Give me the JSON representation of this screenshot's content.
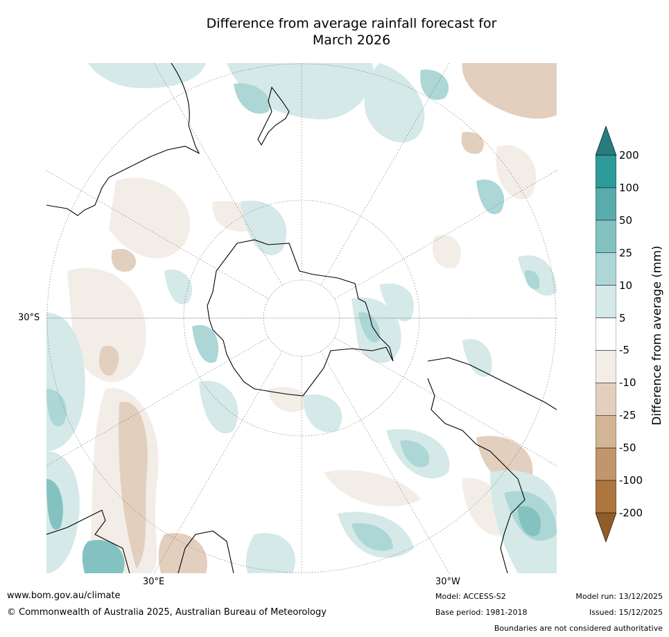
{
  "title": {
    "line1": "Difference from average rainfall forecast for",
    "line2": "March 2026"
  },
  "map": {
    "projection": "south-polar-stereographic",
    "labels": {
      "lat_left": "30°S",
      "lon_bottom_left": "30°E",
      "lon_bottom_right": "30°W"
    }
  },
  "colorbar": {
    "title": "Difference from average (mm)",
    "tick_labels": [
      "200",
      "100",
      "50",
      "25",
      "10",
      "5",
      "-5",
      "-10",
      "-25",
      "-50",
      "-100",
      "-200"
    ],
    "colors": {
      "over": "#2a7b7b",
      "bands_top_to_bottom": [
        "#2e9b9b",
        "#5aacac",
        "#84c2c2",
        "#add6d6",
        "#d4e9e8",
        "#ffffff",
        "#f2ede7",
        "#e3cfbe",
        "#d2b595",
        "#c0966c",
        "#ad7640"
      ],
      "under": "#915c29"
    }
  },
  "footer": {
    "url": "www.bom.gov.au/climate",
    "copyright": "© Commonwealth of Australia 2025, Australian Bureau of Meteorology",
    "model": "Model: ACCESS-S2",
    "base_period": "Base period: 1981-2018",
    "model_run": "Model run: 13/12/2025",
    "issued": "Issued: 15/12/2025",
    "disclaimer": "Boundaries are not considered authoritative"
  }
}
